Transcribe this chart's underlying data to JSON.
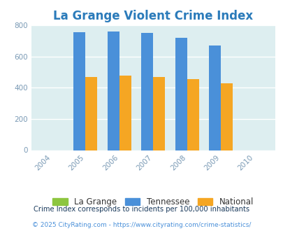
{
  "title": "La Grange Violent Crime Index",
  "title_color": "#2b7bba",
  "years": [
    2005,
    2006,
    2007,
    2008,
    2009
  ],
  "x_ticks": [
    2004,
    2005,
    2006,
    2007,
    2008,
    2009,
    2010
  ],
  "lagrange": [
    0,
    0,
    0,
    0,
    0
  ],
  "tennessee": [
    757,
    762,
    752,
    720,
    670
  ],
  "national": [
    469,
    476,
    468,
    456,
    429
  ],
  "bar_width": 0.35,
  "color_lagrange": "#8dc63f",
  "color_tennessee": "#4a90d9",
  "color_national": "#f5a623",
  "ylim": [
    0,
    800
  ],
  "yticks": [
    0,
    200,
    400,
    600,
    800
  ],
  "bg_color": "#ddeef0",
  "fig_bg": "#ffffff",
  "legend_labels": [
    "La Grange",
    "Tennessee",
    "National"
  ],
  "footnote1": "Crime Index corresponds to incidents per 100,000 inhabitants",
  "footnote2": "© 2025 CityRating.com - https://www.cityrating.com/crime-statistics/",
  "footnote1_color": "#1a3a5c",
  "footnote2_color": "#4a90d9",
  "tick_color": "#7a9ab5"
}
